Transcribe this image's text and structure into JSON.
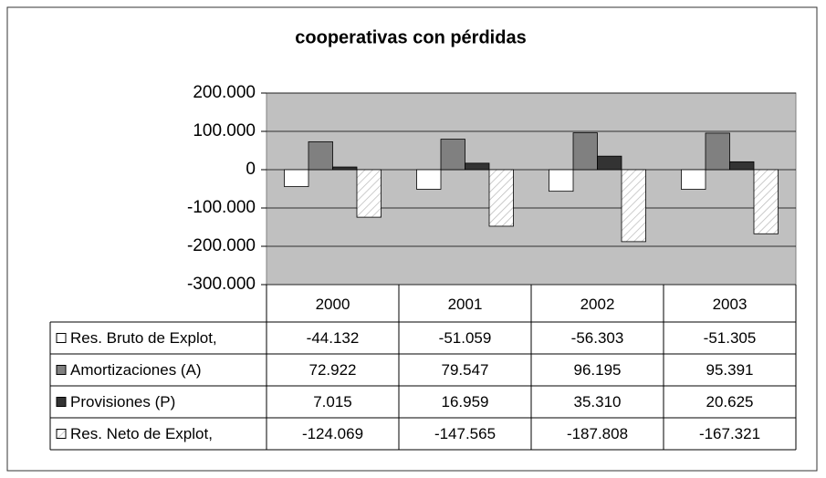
{
  "chart_data": {
    "type": "bar",
    "title": "cooperativas con pérdidas",
    "categories": [
      "2000",
      "2001",
      "2002",
      "2003"
    ],
    "series": [
      {
        "name": "Res. Bruto de Explot,",
        "color": "#ffffff",
        "values": [
          -44132,
          -51059,
          -56303,
          -51305
        ],
        "value_labels": [
          "-44.132",
          "-51.059",
          "-56.303",
          "-51.305"
        ]
      },
      {
        "name": "Amortizaciones (A)",
        "color": "#808080",
        "values": [
          72922,
          79547,
          96195,
          95391
        ],
        "value_labels": [
          "72.922",
          "79.547",
          "96.195",
          "95.391"
        ]
      },
      {
        "name": "Provisiones (P)",
        "color": "#333333",
        "values": [
          7015,
          16959,
          35310,
          20625
        ],
        "value_labels": [
          "7.015",
          "16.959",
          "35.310",
          "20.625"
        ]
      },
      {
        "name": "Res. Neto de Explot,",
        "color": "#ffffff",
        "pattern": "diagonal",
        "values": [
          -124069,
          -147565,
          -187808,
          -167321
        ],
        "value_labels": [
          "-124.069",
          "-147.565",
          "-187.808",
          "-167.321"
        ]
      }
    ],
    "ylim": [
      -300000,
      200000
    ],
    "yticks": [
      {
        "value": -300000,
        "label": "-300.000"
      },
      {
        "value": -200000,
        "label": "-200.000"
      },
      {
        "value": -100000,
        "label": "-100.000"
      },
      0,
      {
        "value": 100000,
        "label": "100.000"
      },
      {
        "value": 200000,
        "label": "200.000"
      }
    ],
    "grid": true,
    "plot_background": "#c0c0c0"
  }
}
